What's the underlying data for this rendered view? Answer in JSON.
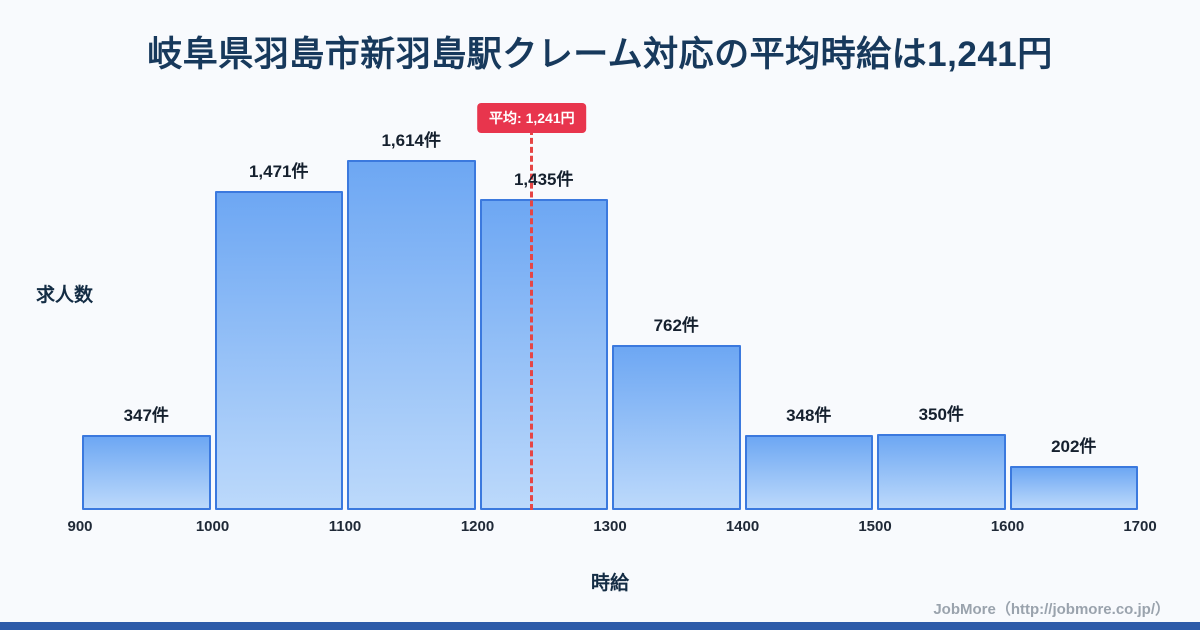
{
  "footer": {
    "text": "JobMore（http://jobmore.co.jp/）"
  },
  "chart_data": {
    "type": "bar",
    "title": "岐阜県羽島市新羽島駅クレーム対応の平均時給は1,241円",
    "xlabel": "時給",
    "ylabel": "求人数",
    "x_ticks": [
      "900",
      "1000",
      "1100",
      "1200",
      "1300",
      "1400",
      "1500",
      "1600",
      "1700"
    ],
    "bins": [
      [
        900,
        1000
      ],
      [
        1000,
        1100
      ],
      [
        1100,
        1200
      ],
      [
        1200,
        1300
      ],
      [
        1300,
        1400
      ],
      [
        1400,
        1500
      ],
      [
        1500,
        1600
      ],
      [
        1600,
        1700
      ]
    ],
    "values": [
      347,
      1471,
      1614,
      1435,
      762,
      348,
      350,
      202
    ],
    "value_labels": [
      "347件",
      "1,471件",
      "1,614件",
      "1,435件",
      "762件",
      "348件",
      "350件",
      "202件"
    ],
    "average": 1241,
    "average_label": "平均: 1,241円",
    "x_range": [
      900,
      1700
    ],
    "ylim": [
      0,
      1700
    ],
    "grid": false,
    "legend": false,
    "colors": {
      "page_bg": "#f8fafd",
      "bar_fill_top": "#6da7f3",
      "bar_fill_bottom": "#bcd9fb",
      "bar_border": "#3b79de",
      "average_line": "#e64545",
      "average_badge_bg": "#e8354d",
      "title_color": "#17395c",
      "accent_bar": "#2d5ba9"
    }
  }
}
